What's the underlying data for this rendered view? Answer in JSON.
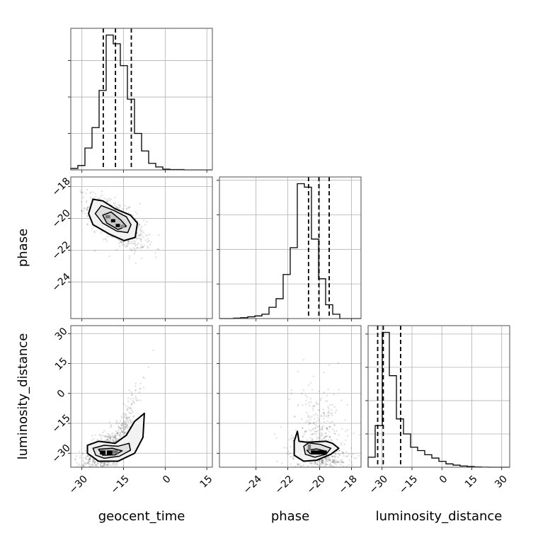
{
  "chart_data": {
    "type": "corner",
    "parameters": [
      "geocent_time",
      "phase",
      "luminosity_distance"
    ],
    "axis_labels": {
      "x": [
        "geocent_time",
        "phase",
        "luminosity_distance"
      ],
      "y": [
        "",
        "phase",
        "luminosity_distance"
      ]
    },
    "grid": true,
    "ranges": {
      "geocent_time": [
        -34,
        17
      ],
      "phase": [
        -26.3,
        -17.4
      ],
      "luminosity_distance": [
        -37,
        34
      ]
    },
    "ticks": {
      "geocent_time": [
        -30,
        -15,
        0,
        15
      ],
      "phase": [
        -24,
        -22,
        -20,
        -18
      ],
      "luminosity_distance": [
        -30,
        -15,
        0,
        15,
        30
      ]
    },
    "tick_labels": {
      "geocent_time": [
        "−30",
        "−15",
        "0",
        "15"
      ],
      "phase": [
        "−24",
        "−22",
        "−20",
        "−18"
      ],
      "luminosity_distance": [
        "−30",
        "−15",
        "0",
        "15",
        "30"
      ]
    },
    "quantiles": {
      "geocent_time": [
        -22.3,
        -17.9,
        -12.2
      ],
      "phase": [
        -20.7,
        -20.05,
        -19.4
      ],
      "luminosity_distance": [
        -32.2,
        -29.4,
        -20.7
      ]
    },
    "histograms": {
      "geocent_time": {
        "edges": [
          -34,
          -31.45,
          -28.9,
          -26.35,
          -23.8,
          -21.25,
          -18.7,
          -16.15,
          -13.6,
          -11.05,
          -8.5,
          -5.95,
          -3.4,
          -0.85,
          1.7,
          4.25,
          6.8,
          9.35,
          11.8,
          14.45,
          17
        ],
        "counts": [
          2,
          6,
          30,
          58,
          109,
          185,
          173,
          143,
          97,
          50,
          26,
          9,
          4,
          1,
          0.5,
          0.5,
          0,
          0,
          0,
          0
        ]
      },
      "phase": {
        "edges": [
          -26.3,
          -25.855,
          -25.41,
          -24.965,
          -24.52,
          -24.075,
          -23.63,
          -23.185,
          -22.74,
          -22.295,
          -21.85,
          -21.405,
          -20.96,
          -20.515,
          -20.07,
          -19.625,
          -19.18,
          -18.735,
          -18.29,
          -17.845,
          -17.4
        ],
        "counts": [
          0,
          0,
          0.5,
          1,
          2,
          3,
          5,
          13,
          23,
          51,
          82,
          156,
          152,
          92,
          46,
          16,
          5,
          0,
          0,
          0
        ]
      },
      "luminosity_distance": {
        "edges": [
          -37,
          -33.45,
          -29.9,
          -26.35,
          -22.8,
          -19.25,
          -15.7,
          -12.15,
          -8.6,
          -5.05,
          -1.5,
          2.05,
          5.6,
          9.15,
          12.7,
          16.25,
          19.8,
          23.35,
          26.9,
          30.45,
          34
        ],
        "counts": [
          12,
          50,
          162,
          110,
          58,
          40,
          24,
          20,
          15,
          11,
          7,
          4,
          2.5,
          1.5,
          0.8,
          0.3,
          0.1,
          0,
          0,
          0
        ]
      }
    },
    "joint_2d": [
      {
        "x": "geocent_time",
        "y": "phase",
        "correlation": -0.65,
        "mode": [
          -17.5,
          -20.3
        ],
        "contours": [
          [
            [
              -27.6,
              -19.7
            ],
            [
              -26.0,
              -18.8
            ],
            [
              -22.5,
              -18.9
            ],
            [
              -18.0,
              -19.4
            ],
            [
              -12.5,
              -19.8
            ],
            [
              -10.0,
              -20.3
            ],
            [
              -10.8,
              -21.2
            ],
            [
              -14.8,
              -21.4
            ],
            [
              -20.0,
              -21.0
            ],
            [
              -26.0,
              -20.4
            ]
          ],
          [
            [
              -25.2,
              -19.7
            ],
            [
              -23.0,
              -19.2
            ],
            [
              -18.5,
              -19.5
            ],
            [
              -14.0,
              -19.9
            ],
            [
              -12.3,
              -20.4
            ],
            [
              -13.5,
              -20.9
            ],
            [
              -17.5,
              -20.8
            ],
            [
              -22.5,
              -20.3
            ]
          ],
          [
            [
              -22.5,
              -19.8
            ],
            [
              -19.5,
              -19.6
            ],
            [
              -16.0,
              -20.1
            ],
            [
              -14.0,
              -20.5
            ],
            [
              -17.0,
              -20.7
            ],
            [
              -21.0,
              -20.3
            ]
          ]
        ],
        "dense_cells": [
          {
            "x0": -19.5,
            "x1": -18.0,
            "y0": -20.25,
            "y1": -20.05,
            "level": 1.0
          },
          {
            "x0": -17.8,
            "x1": -16.3,
            "y0": -20.55,
            "y1": -20.35,
            "level": 1.0
          },
          {
            "x0": -21.5,
            "x1": -19.8,
            "y0": -20.0,
            "y1": -19.8,
            "level": 0.5
          },
          {
            "x0": -16.0,
            "x1": -14.5,
            "y0": -20.6,
            "y1": -20.4,
            "level": 0.4
          }
        ]
      },
      {
        "x": "geocent_time",
        "y": "luminosity_distance",
        "correlation": 0.6,
        "mode": [
          -20.5,
          -29.5
        ],
        "contours": [
          [
            [
              -28.0,
              -26.0
            ],
            [
              -24.0,
              -24.0
            ],
            [
              -18.0,
              -25.0
            ],
            [
              -14.0,
              -21.0
            ],
            [
              -11.0,
              -14.0
            ],
            [
              -7.5,
              -10.0
            ],
            [
              -8.0,
              -22.0
            ],
            [
              -11.0,
              -30.0
            ],
            [
              -17.0,
              -34.0
            ],
            [
              -24.0,
              -34.0
            ],
            [
              -28.0,
              -30.0
            ]
          ],
          [
            [
              -26.0,
              -27.5
            ],
            [
              -22.0,
              -26.0
            ],
            [
              -17.0,
              -26.5
            ],
            [
              -13.0,
              -25.0
            ],
            [
              -12.5,
              -28.5
            ],
            [
              -16.5,
              -31.5
            ],
            [
              -22.0,
              -32.5
            ],
            [
              -25.0,
              -31.0
            ]
          ],
          [
            [
              -24.0,
              -28.0
            ],
            [
              -19.0,
              -27.5
            ],
            [
              -15.5,
              -28.8
            ],
            [
              -18.0,
              -30.8
            ],
            [
              -22.5,
              -31.0
            ]
          ]
        ],
        "dense_cells": [
          {
            "x0": -23.5,
            "x1": -21.5,
            "y0": -30.6,
            "y1": -28.6,
            "level": 1.0
          },
          {
            "x0": -21.0,
            "x1": -19.0,
            "y0": -30.6,
            "y1": -28.6,
            "level": 1.0
          },
          {
            "x0": -19.0,
            "x1": -17.0,
            "y0": -30.2,
            "y1": -28.4,
            "level": 0.5
          }
        ]
      },
      {
        "x": "phase",
        "y": "luminosity_distance",
        "correlation": -0.3,
        "mode": [
          -20.0,
          -29.5
        ],
        "contours": [
          [
            [
              -21.4,
              -19.0
            ],
            [
              -21.3,
              -24.0
            ],
            [
              -20.8,
              -24.5
            ],
            [
              -19.6,
              -24.0
            ],
            [
              -19.2,
              -25.0
            ],
            [
              -18.8,
              -27.5
            ],
            [
              -19.3,
              -30.5
            ],
            [
              -20.2,
              -33.5
            ],
            [
              -21.0,
              -34.0
            ],
            [
              -21.6,
              -31.0
            ],
            [
              -21.6,
              -24.0
            ]
          ],
          [
            [
              -21.0,
              -26.5
            ],
            [
              -20.7,
              -24.8
            ],
            [
              -20.0,
              -25.5
            ],
            [
              -19.3,
              -27.5
            ],
            [
              -19.6,
              -30.5
            ],
            [
              -20.3,
              -32.0
            ],
            [
              -20.9,
              -30.5
            ]
          ],
          [
            [
              -20.8,
              -28.5
            ],
            [
              -20.2,
              -27.8
            ],
            [
              -19.6,
              -29.0
            ],
            [
              -20.0,
              -30.4
            ],
            [
              -20.6,
              -30.2
            ]
          ]
        ],
        "dense_cells": [
          {
            "x0": -20.55,
            "x1": -19.85,
            "y0": -30.6,
            "y1": -28.6,
            "level": 1.0
          },
          {
            "x0": -20.0,
            "x1": -19.55,
            "y0": -30.6,
            "y1": -28.6,
            "level": 1.0
          },
          {
            "x0": -20.75,
            "x1": -20.55,
            "y0": -28.5,
            "y1": -25.5,
            "level": 0.45
          }
        ]
      }
    ]
  }
}
